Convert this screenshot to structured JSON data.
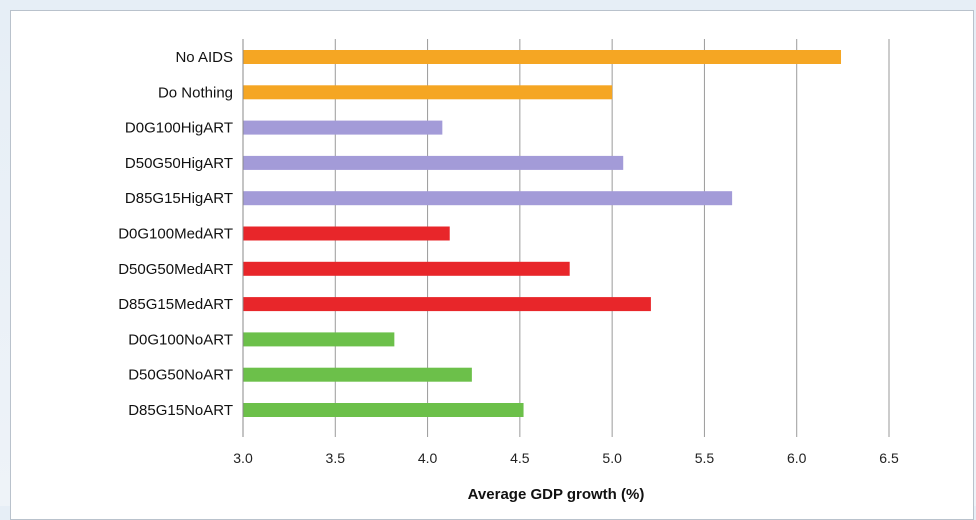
{
  "chart_data": {
    "type": "bar",
    "orientation": "horizontal",
    "categories": [
      "No AIDS",
      "Do Nothing",
      "D0G100HigART",
      "D50G50HigART",
      "D85G15HigART",
      "D0G100MedART",
      "D50G50MedART",
      "D85G15MedART",
      "D0G100NoART",
      "D50G50NoART",
      "D85G15NoART"
    ],
    "values": [
      6.24,
      5.0,
      4.08,
      5.06,
      5.65,
      4.12,
      4.77,
      5.21,
      3.82,
      4.24,
      4.52
    ],
    "colors": [
      "#f5a623",
      "#f5a623",
      "#a39bd8",
      "#a39bd8",
      "#a39bd8",
      "#e8262a",
      "#e8262a",
      "#e8262a",
      "#6cc04a",
      "#6cc04a",
      "#6cc04a"
    ],
    "xlabel": "Average GDP growth (%)",
    "ylabel": "",
    "xlim": [
      3.0,
      6.5
    ],
    "xticks": [
      "3.0",
      "3.5",
      "4.0",
      "4.5",
      "5.0",
      "5.5",
      "6.0",
      "6.5"
    ],
    "grid": "vertical"
  }
}
